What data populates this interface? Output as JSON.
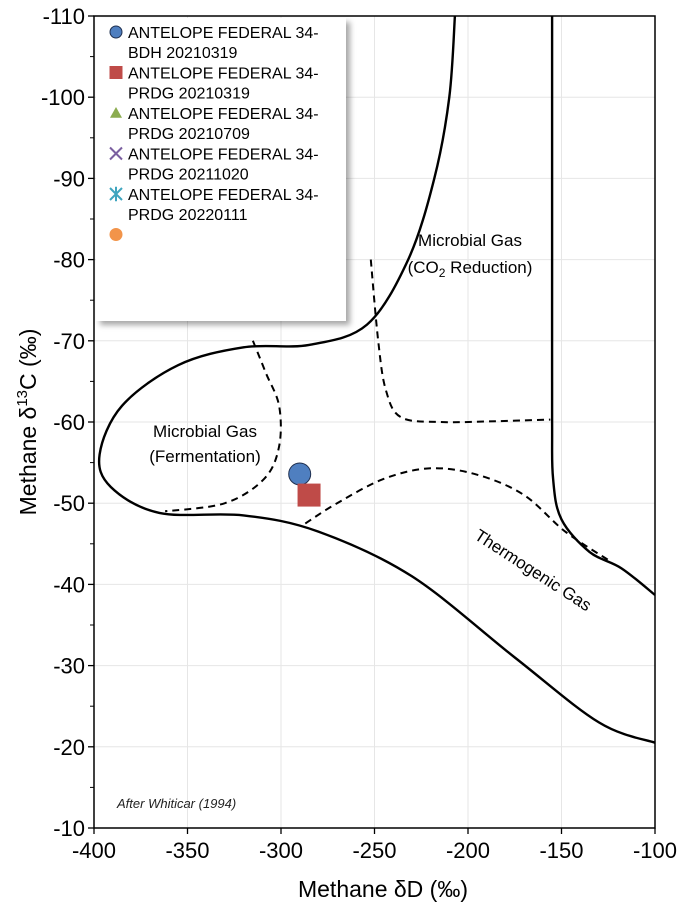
{
  "chart_data": {
    "type": "scatter",
    "title": "",
    "xlabel": "Methane δD (‰)",
    "ylabel_prefix": "Methane δ",
    "ylabel_sup": "13",
    "ylabel_suffix": "C (‰)",
    "xlim": [
      -400,
      -100
    ],
    "ylim": [
      -10,
      -110
    ],
    "x_ticks": [
      -400,
      -350,
      -300,
      -250,
      -200,
      -150,
      -100
    ],
    "y_ticks": [
      -10,
      -20,
      -30,
      -40,
      -50,
      -60,
      -70,
      -80,
      -90,
      -100,
      -110
    ],
    "grid": true,
    "legend_position": "top-left",
    "series": [
      {
        "name_line1": "ANTELOPE FEDERAL 34-",
        "name_line2": "BDH 20210319",
        "marker": "circle",
        "color": "#4f7fc0",
        "edge": "#1f2f4f",
        "points": [
          {
            "x": -290,
            "y": -53.6
          }
        ]
      },
      {
        "name_line1": "ANTELOPE FEDERAL 34-",
        "name_line2": "PRDG 20210319",
        "marker": "square",
        "color": "#bf4b48",
        "edge": "#bf4b48",
        "points": [
          {
            "x": -285,
            "y": -51
          }
        ]
      },
      {
        "name_line1": "ANTELOPE FEDERAL 34-",
        "name_line2": "PRDG 20210709",
        "marker": "triangle",
        "color": "#8bac4f",
        "edge": "#8bac4f",
        "points": []
      },
      {
        "name_line1": "ANTELOPE FEDERAL 34-",
        "name_line2": "PRDG 20211020",
        "marker": "x",
        "color": "#7b5fa0",
        "edge": "#7b5fa0",
        "points": []
      },
      {
        "name_line1": "ANTELOPE FEDERAL 34-",
        "name_line2": "PRDG 20220111",
        "marker": "star",
        "color": "#3fa5bf",
        "edge": "#3fa5bf",
        "points": []
      },
      {
        "name_line1": "",
        "name_line2": "",
        "marker": "circle",
        "color": "#f2944a",
        "edge": "#f2944a",
        "points": []
      }
    ],
    "regions": {
      "fermentation_line1": "Microbial Gas",
      "fermentation_line2": "(Fermentation)",
      "co2_line1": "Microbial Gas",
      "co2_line2_prefix": "(CO",
      "co2_line2_sub": "2",
      "co2_line2_suffix": " Reduction)",
      "thermogenic": "Thermogenic Gas"
    },
    "credit": "After Whiticar (1994)",
    "boundaries": {
      "outer_upper": [
        [
          -207,
          -110
        ],
        [
          -210,
          -100
        ],
        [
          -218,
          -90
        ],
        [
          -232,
          -80
        ],
        [
          -254,
          -72
        ],
        [
          -285,
          -69.5
        ],
        [
          -320,
          -69.2
        ],
        [
          -355,
          -67
        ],
        [
          -385,
          -62
        ],
        [
          -397,
          -56
        ],
        [
          -391,
          -52
        ],
        [
          -365,
          -48.8
        ],
        [
          -320,
          -48.5
        ],
        [
          -280,
          -46.5
        ],
        [
          -230,
          -41
        ],
        [
          -175,
          -31
        ],
        [
          -130,
          -23
        ],
        [
          -100,
          -20.5
        ]
      ],
      "outer_right": [
        [
          -155,
          -110
        ],
        [
          -155,
          -100
        ],
        [
          -155,
          -80
        ],
        [
          -155,
          -60
        ],
        [
          -154.5,
          -53
        ],
        [
          -150,
          -48
        ],
        [
          -135,
          -44
        ],
        [
          -118,
          -42
        ],
        [
          -100,
          -38.7
        ]
      ],
      "dashed_fermentation": [
        [
          -315,
          -70
        ],
        [
          -308,
          -66
        ],
        [
          -301,
          -62
        ],
        [
          -301,
          -57
        ],
        [
          -309,
          -53
        ],
        [
          -330,
          -50
        ],
        [
          -362,
          -49
        ]
      ],
      "dashed_co2": [
        [
          -252,
          -80
        ],
        [
          -248,
          -70
        ],
        [
          -244,
          -64
        ],
        [
          -236,
          -60.6
        ],
        [
          -215,
          -60
        ],
        [
          -185,
          -60.1
        ],
        [
          -156,
          -60.3
        ]
      ],
      "dashed_thermogenic": [
        [
          -287,
          -47.5
        ],
        [
          -270,
          -50
        ],
        [
          -245,
          -53
        ],
        [
          -220,
          -54.3
        ],
        [
          -195,
          -53.5
        ],
        [
          -170,
          -51
        ],
        [
          -148,
          -46.5
        ],
        [
          -125,
          -43
        ]
      ]
    }
  }
}
